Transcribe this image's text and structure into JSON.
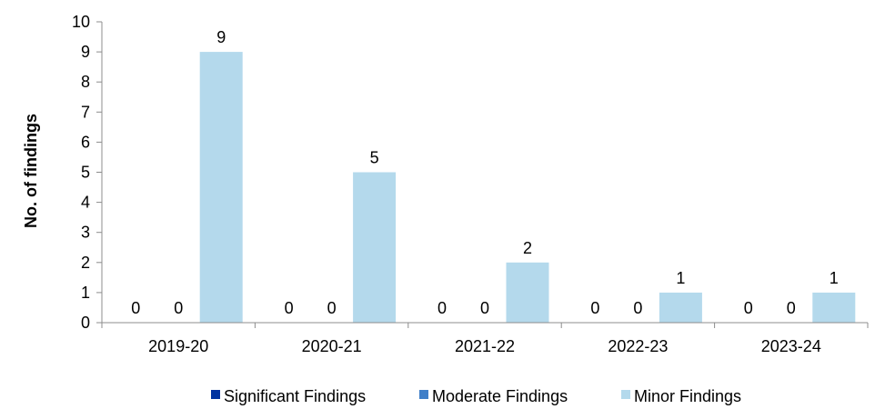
{
  "chart_data": {
    "type": "bar",
    "title": "",
    "xlabel": "",
    "ylabel": "No. of findings",
    "ylim": [
      0,
      10
    ],
    "yticks": [
      0,
      1,
      2,
      3,
      4,
      5,
      6,
      7,
      8,
      9,
      10
    ],
    "grid": false,
    "legend_position": "bottom",
    "categories": [
      "2019-20",
      "2020-21",
      "2021-22",
      "2022-23",
      "2023-24"
    ],
    "series": [
      {
        "name": "Significant Findings",
        "color": "#0033A0",
        "values": [
          0,
          0,
          0,
          0,
          0
        ]
      },
      {
        "name": "Moderate Findings",
        "color": "#3F7FC8",
        "values": [
          0,
          0,
          0,
          0,
          0
        ]
      },
      {
        "name": "Minor Findings",
        "color": "#B4D9EC",
        "values": [
          9,
          5,
          2,
          1,
          1
        ]
      }
    ]
  }
}
